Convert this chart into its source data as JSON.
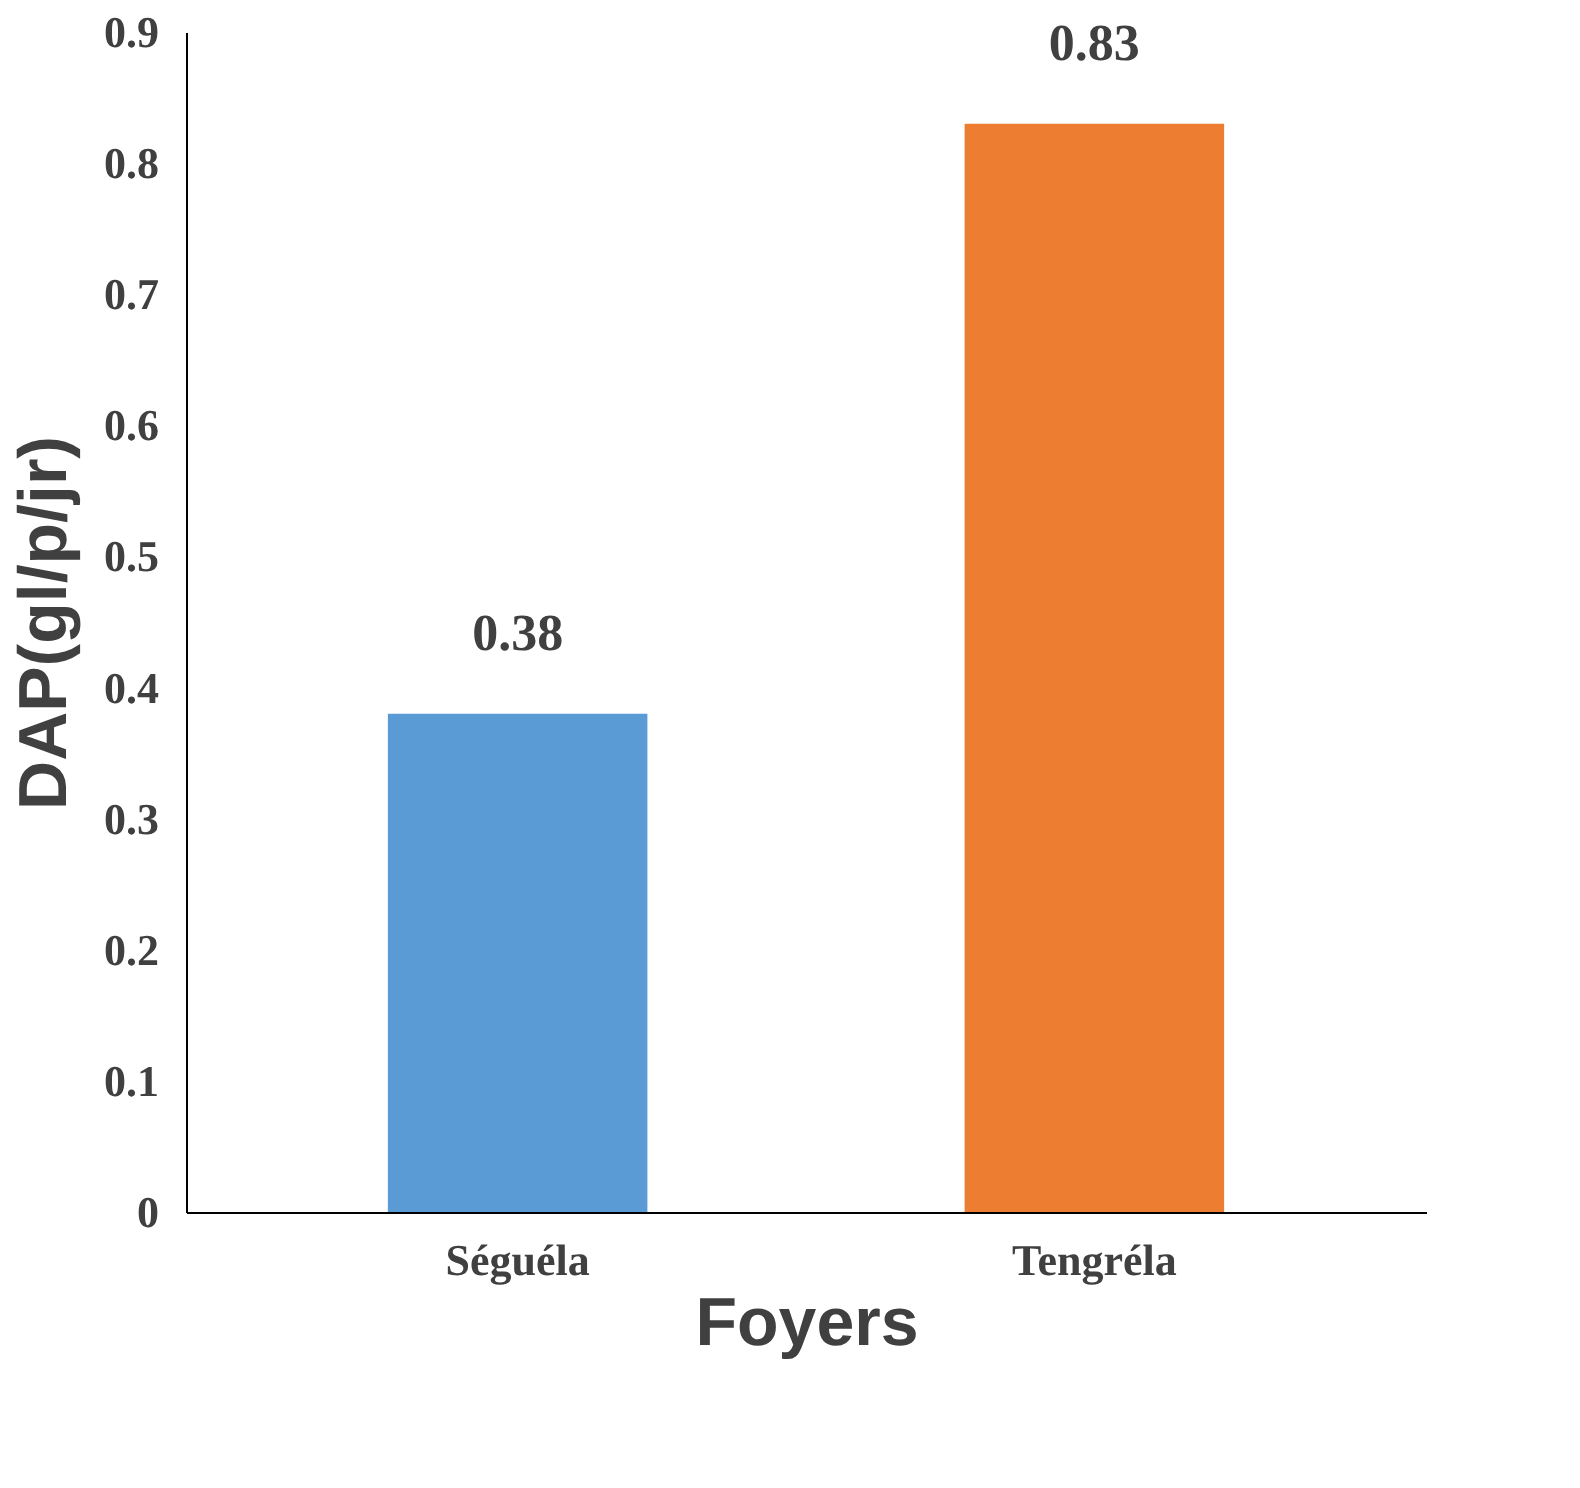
{
  "chart_data": {
    "type": "bar",
    "categories": [
      "Séguéla",
      "Tengréla"
    ],
    "values": [
      0.38,
      0.83
    ],
    "colors": [
      "#5b9bd5",
      "#ed7d31"
    ],
    "xlabel": "Foyers",
    "ylabel": "DAP(gl/p/jr)",
    "ylim": [
      0,
      0.9
    ],
    "yticks": [
      0,
      0.1,
      0.2,
      0.3,
      0.4,
      0.5,
      0.6,
      0.7,
      0.8,
      0.9
    ],
    "grid": false,
    "data_labels": true
  }
}
